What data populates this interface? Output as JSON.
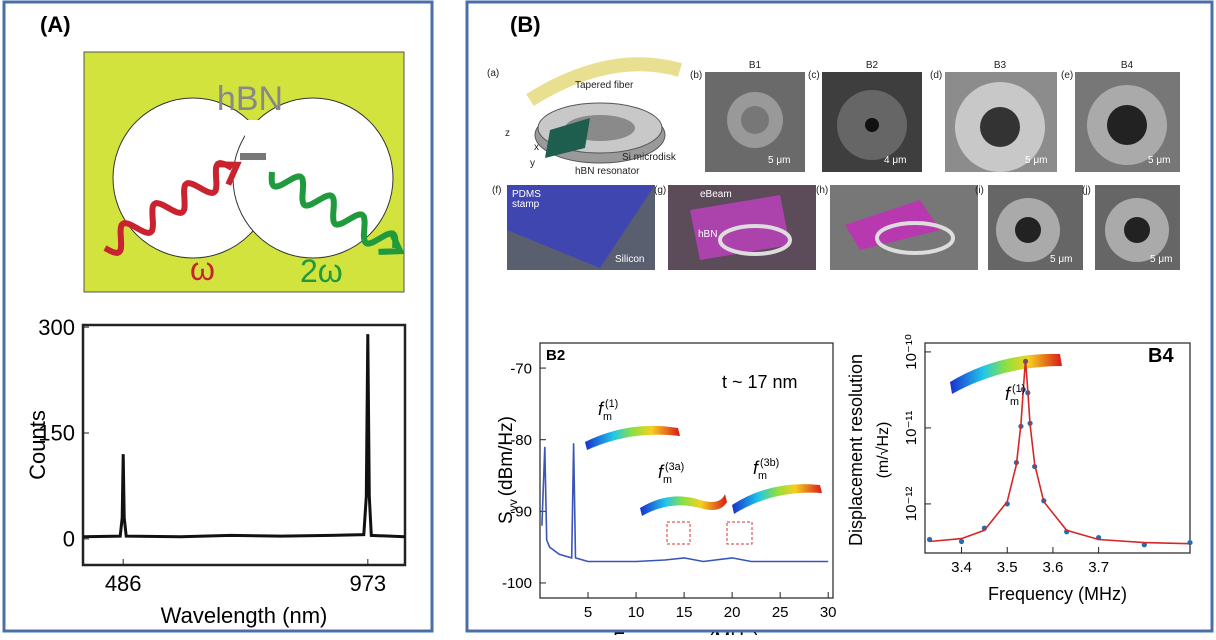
{
  "panel_a": {
    "label": "(A)",
    "diagram": {
      "material": "hBN",
      "input": "ω",
      "output": "2ω"
    }
  },
  "panel_b": {
    "label": "(B)",
    "images": [
      {
        "label": "(a)",
        "fiber": "Tapered fiber",
        "disk": "Si microdisk",
        "resonator": "hBN resonator",
        "axes": [
          "z",
          "x",
          "y"
        ]
      },
      {
        "label": "(b)",
        "title": "B1",
        "scale": "5 μm"
      },
      {
        "label": "(c)",
        "title": "B2",
        "scale": "4 μm"
      },
      {
        "label": "(d)",
        "title": "B3",
        "scale": "5 μm"
      },
      {
        "label": "(e)",
        "title": "B4",
        "scale": "5 μm"
      },
      {
        "label": "(f)",
        "stamp": [
          "PDMS",
          "stamp"
        ],
        "substrate": "Silicon"
      },
      {
        "label": "(g)",
        "beam": "eBeam",
        "material": "hBN"
      },
      {
        "label": "(h)"
      },
      {
        "label": "(i)",
        "scale": "5 μm"
      },
      {
        "label": "(j)",
        "scale": "5 μm"
      }
    ]
  },
  "chart_data": [
    {
      "type": "line",
      "xlabel": "Wavelength (nm)",
      "ylabel": "Counts",
      "x": [
        406,
        480,
        484,
        486,
        488,
        492,
        600,
        700,
        800,
        900,
        965,
        970,
        973,
        976,
        980,
        1047
      ],
      "series": [
        {
          "color": "#111111",
          "values": [
            3,
            4,
            30,
            120,
            30,
            4,
            3,
            5,
            4,
            5,
            6,
            60,
            290,
            60,
            5,
            3
          ]
        }
      ],
      "xlim": [
        406,
        1047
      ],
      "ylim": [
        -37,
        303
      ],
      "xticks": [
        486,
        973
      ],
      "yticks": [
        0,
        150,
        300
      ]
    },
    {
      "type": "line",
      "xlabel": "Frequency (MHz)",
      "ylabel": {
        "symbol": "S",
        "sub": "vv",
        "unit": "(dBm/Hz)"
      },
      "panel": "B2",
      "thickness": "t ~ 17 nm",
      "modes": [
        {
          "base": "f",
          "sub": "m",
          "sup": "(1)"
        },
        {
          "base": "f",
          "sub": "m",
          "sup": "(3a)"
        },
        {
          "base": "f",
          "sub": "m",
          "sup": "(3b)"
        }
      ],
      "x": [
        0.2,
        0.5,
        0.7,
        1,
        2,
        3.3,
        3.5,
        3.7,
        5,
        8,
        10,
        13,
        15,
        17,
        20,
        22,
        25,
        28,
        30
      ],
      "series": [
        {
          "color": "#3a55b8",
          "values": [
            -92,
            -81,
            -94,
            -95,
            -96,
            -96.5,
            -80.5,
            -96.5,
            -97,
            -97,
            -97,
            -96.8,
            -96.5,
            -97,
            -96.5,
            -97,
            -97,
            -97,
            -97
          ]
        }
      ],
      "xlim": [
        0,
        30.5
      ],
      "ylim": [
        -102.1,
        -66.5
      ],
      "xticks": [
        5,
        10,
        15,
        20,
        25,
        30
      ],
      "yticks": [
        -100,
        -90,
        -80,
        -70
      ]
    },
    {
      "type": "line",
      "xlabel": "Frequency (MHz)",
      "ylabel": "Displacement resolution",
      "yunit": "(m/√Hz)",
      "ylog": true,
      "panel": "B4",
      "modes": [
        {
          "base": "f",
          "sub": "m",
          "sup": "(1)"
        }
      ],
      "x": [
        3.33,
        3.4,
        3.45,
        3.5,
        3.52,
        3.53,
        3.535,
        3.54,
        3.545,
        3.55,
        3.56,
        3.58,
        3.63,
        3.7,
        3.8,
        3.9
      ],
      "series": [
        {
          "color": "#1f6fb5",
          "marker": "dot",
          "values": [
            3.4e-13,
            3.2e-13,
            4.8e-13,
            1e-12,
            3.5e-12,
            1.05e-11,
            3.2e-11,
            7.5e-11,
            2.9e-11,
            1.15e-11,
            3.1e-12,
            1.1e-12,
            4.3e-13,
            3.6e-13,
            2.9e-13,
            3.1e-13
          ]
        },
        {
          "color": "#d62728",
          "values": [
            3.2e-13,
            3.5e-13,
            4.5e-13,
            1.07e-12,
            3.3e-12,
            1.1e-11,
            3.08e-11,
            7.9e-11,
            3.08e-11,
            1.1e-11,
            3.3e-12,
            1.07e-12,
            4.5e-13,
            3.4e-13,
            3.1e-13,
            3e-13
          ]
        }
      ],
      "xlim": [
        3.32,
        3.9
      ],
      "ylim": [
        2.26e-13,
        1.31e-10
      ],
      "xticks": [
        3.4,
        3.5,
        3.6,
        3.7
      ],
      "yticks": [
        {
          "value": 1e-12,
          "label": "10⁻¹²"
        },
        {
          "value": 1e-11,
          "label": "10⁻¹¹"
        },
        {
          "value": 1e-10,
          "label": "10⁻¹⁰"
        }
      ]
    }
  ]
}
